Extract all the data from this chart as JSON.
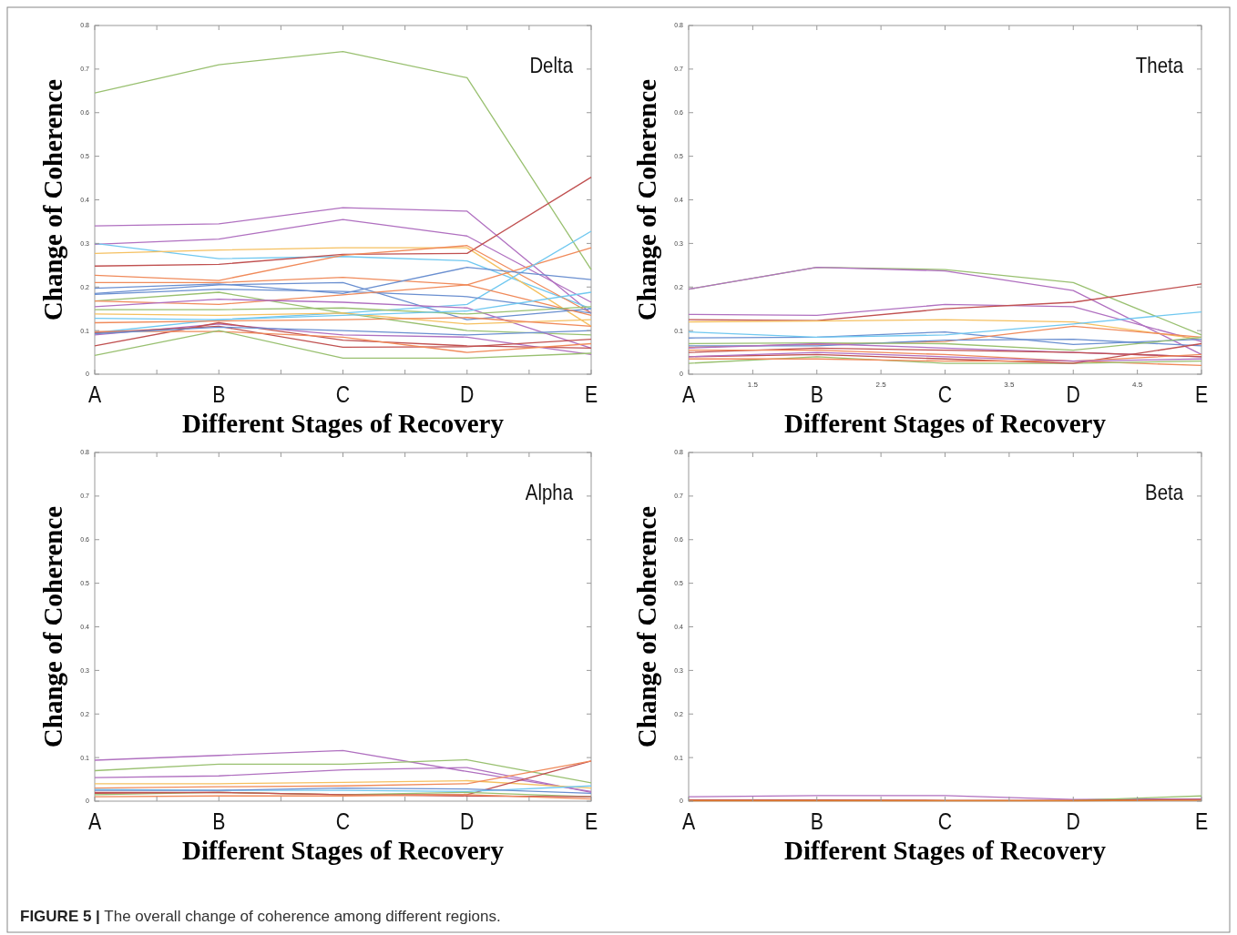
{
  "chart_data": [
    {
      "type": "line",
      "title": "Delta",
      "xlabel": "Different Stages of Recovery",
      "ylabel": "Change of Coherence",
      "categories": [
        "A",
        "B",
        "C",
        "D",
        "E"
      ],
      "ylim": [
        0,
        0.8
      ],
      "yticks": [
        0,
        0.1,
        0.2,
        0.3,
        0.4,
        0.5,
        0.6,
        0.7,
        0.8
      ],
      "grid": false,
      "annotations": [
        "FIGURE 5 | The overall change of coherence among different regions."
      ],
      "series": [
        {
          "color": "#99c070",
          "values": [
            0.645,
            0.71,
            0.74,
            0.68,
            0.24
          ]
        },
        {
          "color": "#b070c0",
          "values": [
            0.34,
            0.345,
            0.382,
            0.374,
            0.14
          ]
        },
        {
          "color": "#b070c0",
          "values": [
            0.298,
            0.31,
            0.355,
            0.317,
            0.165
          ]
        },
        {
          "color": "#70c8f0",
          "values": [
            0.3,
            0.265,
            0.27,
            0.26,
            0.15
          ]
        },
        {
          "color": "#f5c060",
          "values": [
            0.277,
            0.285,
            0.29,
            0.29,
            0.11
          ]
        },
        {
          "color": "#c05050",
          "values": [
            0.248,
            0.252,
            0.275,
            0.277,
            0.452
          ]
        },
        {
          "color": "#f08a5a",
          "values": [
            0.227,
            0.215,
            0.273,
            0.295,
            0.14
          ]
        },
        {
          "color": "#f08a5a",
          "values": [
            0.21,
            0.21,
            0.222,
            0.205,
            0.29
          ]
        },
        {
          "color": "#70c8f0",
          "values": [
            0.095,
            0.125,
            0.14,
            0.16,
            0.328
          ]
        },
        {
          "color": "#6a8fd0",
          "values": [
            0.185,
            0.205,
            0.21,
            0.125,
            0.15
          ]
        },
        {
          "color": "#6a8fd0",
          "values": [
            0.197,
            0.207,
            0.185,
            0.245,
            0.217
          ]
        },
        {
          "color": "#6a8fd0",
          "values": [
            0.183,
            0.195,
            0.19,
            0.178,
            0.14
          ]
        },
        {
          "color": "#99c070",
          "values": [
            0.168,
            0.188,
            0.14,
            0.1,
            0.09
          ]
        },
        {
          "color": "#f08a5a",
          "values": [
            0.168,
            0.16,
            0.182,
            0.205,
            0.135
          ]
        },
        {
          "color": "#b070c0",
          "values": [
            0.155,
            0.172,
            0.165,
            0.152,
            0.06
          ]
        },
        {
          "color": "#99c070",
          "values": [
            0.148,
            0.148,
            0.152,
            0.138,
            0.155
          ]
        },
        {
          "color": "#f5c060",
          "values": [
            0.138,
            0.135,
            0.14,
            0.115,
            0.125
          ]
        },
        {
          "color": "#70c8f0",
          "values": [
            0.128,
            0.125,
            0.135,
            0.145,
            0.188
          ]
        },
        {
          "color": "#f08a5a",
          "values": [
            0.118,
            0.122,
            0.125,
            0.13,
            0.11
          ]
        },
        {
          "color": "#b070c0",
          "values": [
            0.09,
            0.115,
            0.09,
            0.085,
            0.045
          ]
        },
        {
          "color": "#c05050",
          "values": [
            0.095,
            0.11,
            0.062,
            0.063,
            0.08
          ]
        },
        {
          "color": "#c05050",
          "values": [
            0.065,
            0.118,
            0.078,
            0.065,
            0.06
          ]
        },
        {
          "color": "#f08a5a",
          "values": [
            0.098,
            0.098,
            0.085,
            0.05,
            0.07
          ]
        },
        {
          "color": "#99c070",
          "values": [
            0.043,
            0.1,
            0.037,
            0.037,
            0.048
          ]
        },
        {
          "color": "#6a8fd0",
          "values": [
            0.093,
            0.108,
            0.1,
            0.09,
            0.1
          ]
        }
      ]
    },
    {
      "type": "line",
      "title": "Theta",
      "xlabel": "Different Stages of Recovery",
      "ylabel": "Change of Coherence",
      "categories": [
        "A",
        "B",
        "C",
        "D",
        "E"
      ],
      "ylim": [
        0,
        0.8
      ],
      "yticks": [
        0,
        0.1,
        0.2,
        0.3,
        0.4,
        0.5,
        0.6,
        0.7,
        0.8
      ],
      "grid": false,
      "annotations": [
        "1.5",
        "2.5",
        "3.5",
        "4.5"
      ],
      "series": [
        {
          "color": "#99c070",
          "values": [
            0.195,
            0.245,
            0.24,
            0.21,
            0.09
          ]
        },
        {
          "color": "#b070c0",
          "values": [
            0.195,
            0.245,
            0.237,
            0.192,
            0.045
          ]
        },
        {
          "color": "#b070c0",
          "values": [
            0.137,
            0.135,
            0.16,
            0.155,
            0.075
          ]
        },
        {
          "color": "#c05050",
          "values": [
            0.125,
            0.123,
            0.15,
            0.165,
            0.207
          ]
        },
        {
          "color": "#f5c060",
          "values": [
            0.12,
            0.122,
            0.125,
            0.12,
            0.08
          ]
        },
        {
          "color": "#6a8fd0",
          "values": [
            0.083,
            0.085,
            0.097,
            0.068,
            0.08
          ]
        },
        {
          "color": "#70c8f0",
          "values": [
            0.097,
            0.085,
            0.09,
            0.115,
            0.143
          ]
        },
        {
          "color": "#f08a5a",
          "values": [
            0.062,
            0.068,
            0.075,
            0.11,
            0.085
          ]
        },
        {
          "color": "#6a8fd0",
          "values": [
            0.065,
            0.065,
            0.078,
            0.08,
            0.065
          ]
        },
        {
          "color": "#99c070",
          "values": [
            0.07,
            0.072,
            0.07,
            0.055,
            0.085
          ]
        },
        {
          "color": "#b070c0",
          "values": [
            0.06,
            0.07,
            0.06,
            0.05,
            0.04
          ]
        },
        {
          "color": "#c05050",
          "values": [
            0.05,
            0.06,
            0.055,
            0.05,
            0.04
          ]
        },
        {
          "color": "#f08a5a",
          "values": [
            0.055,
            0.055,
            0.045,
            0.03,
            0.02
          ]
        },
        {
          "color": "#99c070",
          "values": [
            0.025,
            0.04,
            0.025,
            0.025,
            0.03
          ]
        },
        {
          "color": "#c05050",
          "values": [
            0.04,
            0.045,
            0.035,
            0.025,
            0.07
          ]
        },
        {
          "color": "#f08a5a",
          "values": [
            0.035,
            0.035,
            0.03,
            0.03,
            0.045
          ]
        },
        {
          "color": "#b070c0",
          "values": [
            0.04,
            0.05,
            0.04,
            0.03,
            0.035
          ]
        }
      ]
    },
    {
      "type": "line",
      "title": "Alpha",
      "xlabel": "Different Stages of Recovery",
      "ylabel": "Change of Coherence",
      "categories": [
        "A",
        "B",
        "C",
        "D",
        "E"
      ],
      "ylim": [
        0,
        0.8
      ],
      "yticks": [
        0,
        0.1,
        0.2,
        0.3,
        0.4,
        0.5,
        0.6,
        0.7,
        0.8
      ],
      "grid": false,
      "series": [
        {
          "color": "#b070c0",
          "values": [
            0.094,
            0.105,
            0.116,
            0.068,
            0.022
          ]
        },
        {
          "color": "#99c070",
          "values": [
            0.07,
            0.085,
            0.085,
            0.095,
            0.042
          ]
        },
        {
          "color": "#b070c0",
          "values": [
            0.054,
            0.058,
            0.072,
            0.077,
            0.02
          ]
        },
        {
          "color": "#f5c060",
          "values": [
            0.04,
            0.04,
            0.043,
            0.047,
            0.03
          ]
        },
        {
          "color": "#c05050",
          "values": [
            0.02,
            0.02,
            0.015,
            0.015,
            0.092
          ]
        },
        {
          "color": "#f08a5a",
          "values": [
            0.03,
            0.033,
            0.035,
            0.04,
            0.092
          ]
        },
        {
          "color": "#70c8f0",
          "values": [
            0.027,
            0.025,
            0.025,
            0.022,
            0.035
          ]
        },
        {
          "color": "#6a8fd0",
          "values": [
            0.025,
            0.025,
            0.03,
            0.028,
            0.018
          ]
        },
        {
          "color": "#99c070",
          "values": [
            0.015,
            0.02,
            0.015,
            0.02,
            0.01
          ]
        },
        {
          "color": "#c05050",
          "values": [
            0.018,
            0.02,
            0.015,
            0.012,
            0.01
          ]
        },
        {
          "color": "#f08a5a",
          "values": [
            0.01,
            0.012,
            0.012,
            0.015,
            0.005
          ]
        }
      ]
    },
    {
      "type": "line",
      "title": "Beta",
      "xlabel": "Different Stages of Recovery",
      "ylabel": "Change of Coherence",
      "categories": [
        "A",
        "B",
        "C",
        "D",
        "E"
      ],
      "ylim": [
        0,
        0.8
      ],
      "yticks": [
        0,
        0.1,
        0.2,
        0.3,
        0.4,
        0.5,
        0.6,
        0.7,
        0.8
      ],
      "grid": false,
      "series": [
        {
          "color": "#b070c0",
          "values": [
            0.01,
            0.013,
            0.013,
            0.004,
            0.005
          ]
        },
        {
          "color": "#99c070",
          "values": [
            null,
            null,
            null,
            0.002,
            0.012
          ]
        },
        {
          "color": "#c05050",
          "values": [
            0.003,
            0.003,
            0.002,
            0.002,
            0.004
          ]
        },
        {
          "color": "#e08030",
          "values": [
            0.001,
            0.001,
            0.001,
            0.001,
            0.002
          ]
        }
      ]
    }
  ]
}
